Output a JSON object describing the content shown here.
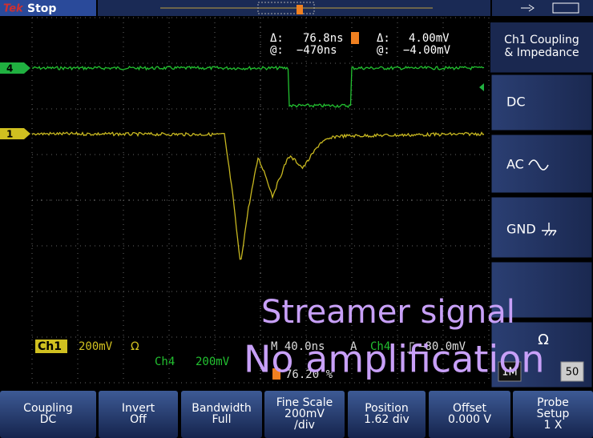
{
  "top_bar": {
    "brand": "Tek",
    "state": "Stop"
  },
  "cursor_readout": {
    "time_delta_label": "Δ:",
    "time_delta": "76.8ns",
    "time_at_label": "@:",
    "time_at": "−470ns",
    "volt_delta_label": "Δ:",
    "volt_delta": "4.00mV",
    "volt_at_label": "@:",
    "volt_at": "−4.00mV"
  },
  "channel_markers": [
    "4",
    "1"
  ],
  "side_menu": {
    "title": [
      "Ch1 Coupling",
      "& Impedance"
    ],
    "options": [
      "DC",
      "AC",
      "GND"
    ],
    "impedance": {
      "symbol": "Ω",
      "options": [
        "1M",
        "50"
      ]
    }
  },
  "status": {
    "ch1_badge": "Ch1",
    "ch1_scale": "200mV",
    "ch1_impedance": "Ω",
    "ch4_label": "Ch4",
    "ch4_scale": "200mV",
    "timebase": "M 40.0ns",
    "trigger_mode": "A",
    "trigger_source": "Ch4",
    "trigger_level": "−80.0mV",
    "trigger_position": "76.20 %"
  },
  "annotation": [
    "Streamer signal",
    "No amplification"
  ],
  "bottom_menu": [
    {
      "lines": [
        "Coupling",
        "DC"
      ]
    },
    {
      "lines": [
        "Invert",
        "Off"
      ]
    },
    {
      "lines": [
        "Bandwidth",
        "Full"
      ]
    },
    {
      "lines": [
        "Fine Scale",
        "200mV",
        "/div"
      ]
    },
    {
      "lines": [
        "Position",
        "1.62 div"
      ]
    },
    {
      "lines": [
        "Offset",
        "0.000 V"
      ]
    },
    {
      "lines": [
        "Probe",
        "Setup",
        "1 X"
      ]
    }
  ]
}
